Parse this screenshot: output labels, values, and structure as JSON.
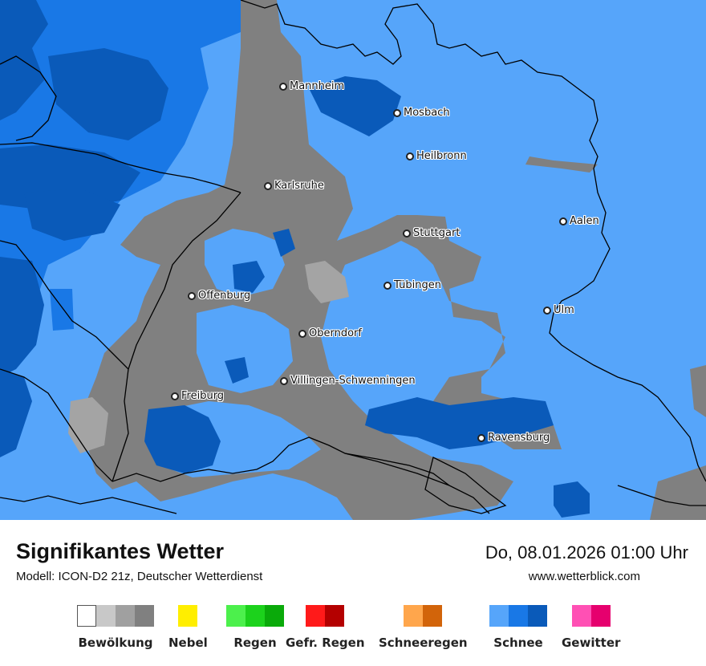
{
  "map": {
    "cities": [
      {
        "name": "Mannheim"
      },
      {
        "name": "Mosbach"
      },
      {
        "name": "Heilbronn"
      },
      {
        "name": "Karlsruhe"
      },
      {
        "name": "Aalen"
      },
      {
        "name": "Stuttgart"
      },
      {
        "name": "Tübingen"
      },
      {
        "name": "Offenburg"
      },
      {
        "name": "Ulm"
      },
      {
        "name": "Oberndorf"
      },
      {
        "name": "Villingen-Schwenningen"
      },
      {
        "name": "Freiburg"
      },
      {
        "name": "Ravensburg"
      }
    ],
    "colors": {
      "snow_light": "#56a5fa",
      "snow_medium": "#1978e6",
      "snow_dark": "#0a5ab9",
      "cloud_grey": "#808080",
      "cloud_light": "#a4a4a4",
      "border": "#000000"
    }
  },
  "footer": {
    "title": "Signifikantes Wetter",
    "model": "Modell: ICON-D2 21z, Deutscher Wetterdienst",
    "datetime": "Do, 08.01.2026 01:00 Uhr",
    "site": "www.wetterblick.com"
  },
  "legend": [
    {
      "label": "Bewölkung",
      "colors": [
        "#ffffff",
        "#c8c8c8",
        "#a0a0a0",
        "#808080"
      ]
    },
    {
      "label": "Nebel",
      "colors": [
        "#ffee00"
      ]
    },
    {
      "label": "Regen",
      "colors": [
        "#4cf04c",
        "#1cd21c",
        "#0aaa0a"
      ]
    },
    {
      "label": "Gefr. Regen",
      "colors": [
        "#ff1a1a",
        "#b40000"
      ]
    },
    {
      "label": "Schneeregen",
      "colors": [
        "#ffa64c",
        "#d2640a"
      ]
    },
    {
      "label": "Schnee",
      "colors": [
        "#56a5fa",
        "#1978e6",
        "#0a5ab9"
      ]
    },
    {
      "label": "Gewitter",
      "colors": [
        "#ff50b4",
        "#e6006e"
      ]
    }
  ]
}
